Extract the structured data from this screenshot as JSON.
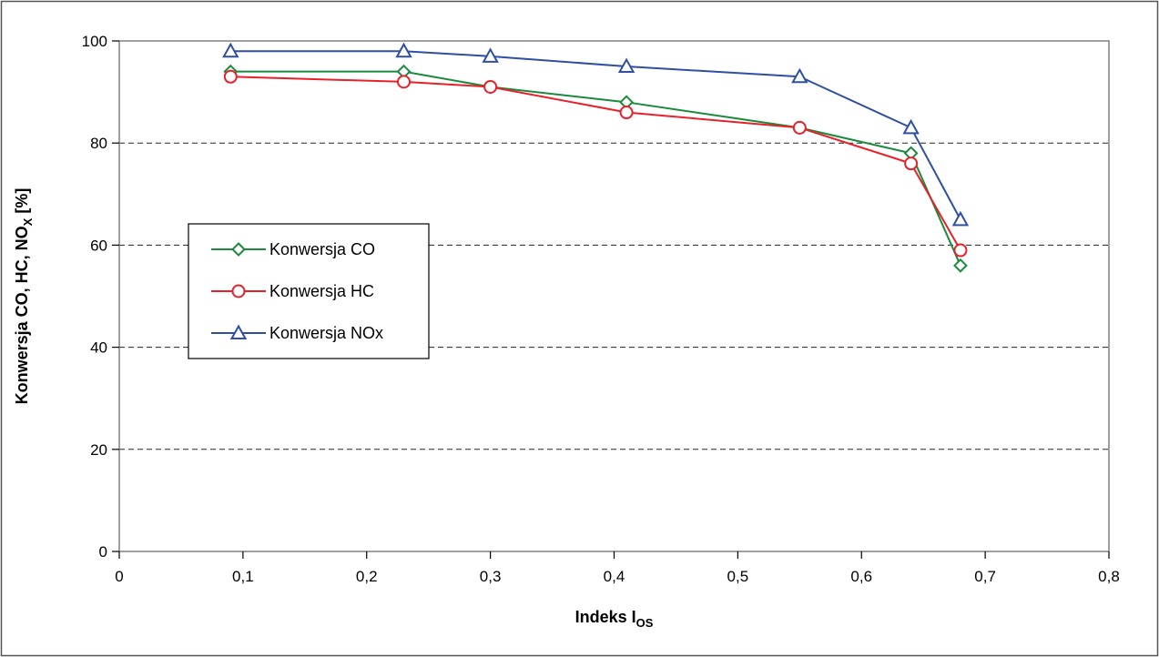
{
  "chart_data": {
    "type": "line",
    "xlabel": {
      "main": "Indeks I",
      "sub": "OS"
    },
    "ylabel": {
      "main": "Konwersja CO, HC, NO",
      "sub": "X",
      "suffix": " [%]"
    },
    "xlim": [
      0,
      0.8
    ],
    "ylim": [
      0,
      100
    ],
    "x_ticks": [
      0,
      0.1,
      0.2,
      0.3,
      0.4,
      0.5,
      0.6,
      0.7,
      0.8
    ],
    "x_tick_labels": [
      "0",
      "0,1",
      "0,2",
      "0,3",
      "0,4",
      "0,5",
      "0,6",
      "0,7",
      "0,8"
    ],
    "y_ticks": [
      0,
      20,
      40,
      60,
      80,
      100
    ],
    "y_tick_labels": [
      "0",
      "20",
      "40",
      "60",
      "80",
      "100"
    ],
    "grid": "horizontal-dashed",
    "legend_position": "left-middle",
    "series": [
      {
        "name": "Konwersja CO",
        "color": "#1a8a3c",
        "marker": "diamond",
        "x": [
          0.09,
          0.23,
          0.3,
          0.41,
          0.55,
          0.64,
          0.68
        ],
        "y": [
          94,
          94,
          91,
          88,
          83,
          78,
          56
        ]
      },
      {
        "name": "Konwersja HC",
        "color": "#e8202a",
        "marker": "circle",
        "x": [
          0.09,
          0.23,
          0.3,
          0.41,
          0.55,
          0.64,
          0.68
        ],
        "y": [
          93,
          92,
          91,
          86,
          83,
          76,
          59
        ]
      },
      {
        "name": "Konwersja NOx",
        "color": "#2e4fa3",
        "marker": "triangle",
        "x": [
          0.09,
          0.23,
          0.3,
          0.41,
          0.55,
          0.64,
          0.68
        ],
        "y": [
          98,
          98,
          97,
          95,
          93,
          83,
          65
        ]
      }
    ]
  }
}
